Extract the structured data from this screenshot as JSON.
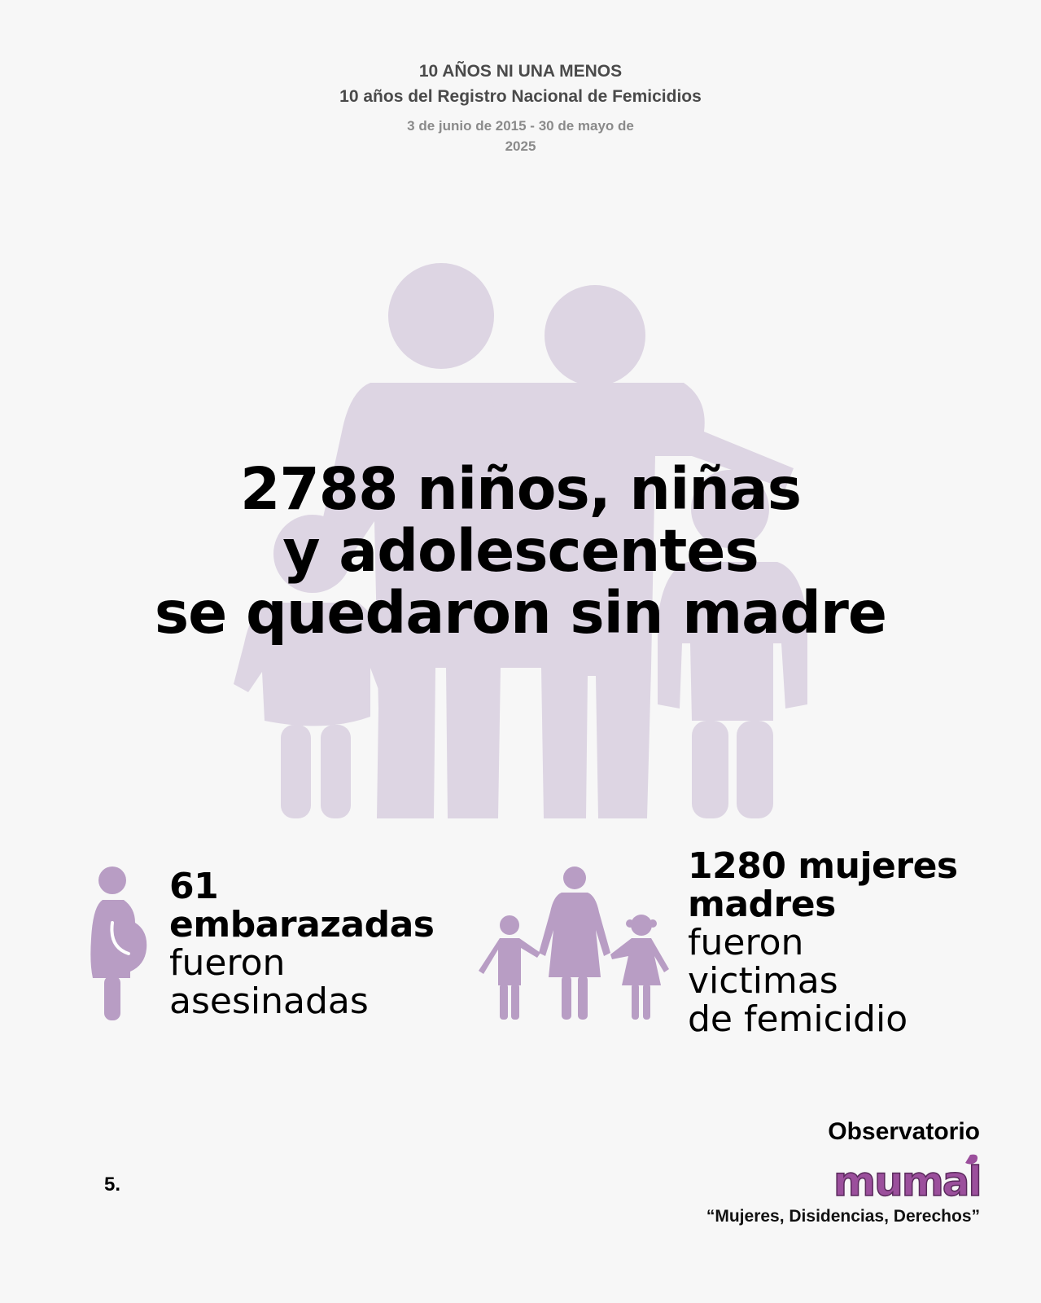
{
  "header": {
    "title": "10 AÑOS NI UNA MENOS",
    "subtitle": "10 años del Registro Nacional de Femicidios",
    "date_range": "3 de junio de 2015 - 30 de mayo de 2025"
  },
  "headline": {
    "line1": "2788 niños, niñas",
    "line2": "y adolescentes",
    "line3": "se quedaron sin madre"
  },
  "stat_pregnant": {
    "number": "61",
    "bold_word": "embarazadas",
    "line3": "fueron",
    "line4": "asesinadas",
    "icon": "pregnant-woman-icon"
  },
  "stat_mothers": {
    "line1": "1280 mujeres",
    "line2": "madres",
    "line3": "fueron",
    "line4": "victimas",
    "line5": "de femicidio",
    "icon": "mother-children-icon"
  },
  "footer": {
    "page_number": "5.",
    "observatory_label": "Observatorio",
    "logo_text": "mumalá",
    "tagline": "“Mujeres, Disidencias, Derechos”"
  },
  "colors": {
    "background": "#f7f7f7",
    "family_silhouette": "#ddd5e3",
    "icon_purple": "#b89dc4",
    "logo_purple": "#9b4f9c"
  }
}
